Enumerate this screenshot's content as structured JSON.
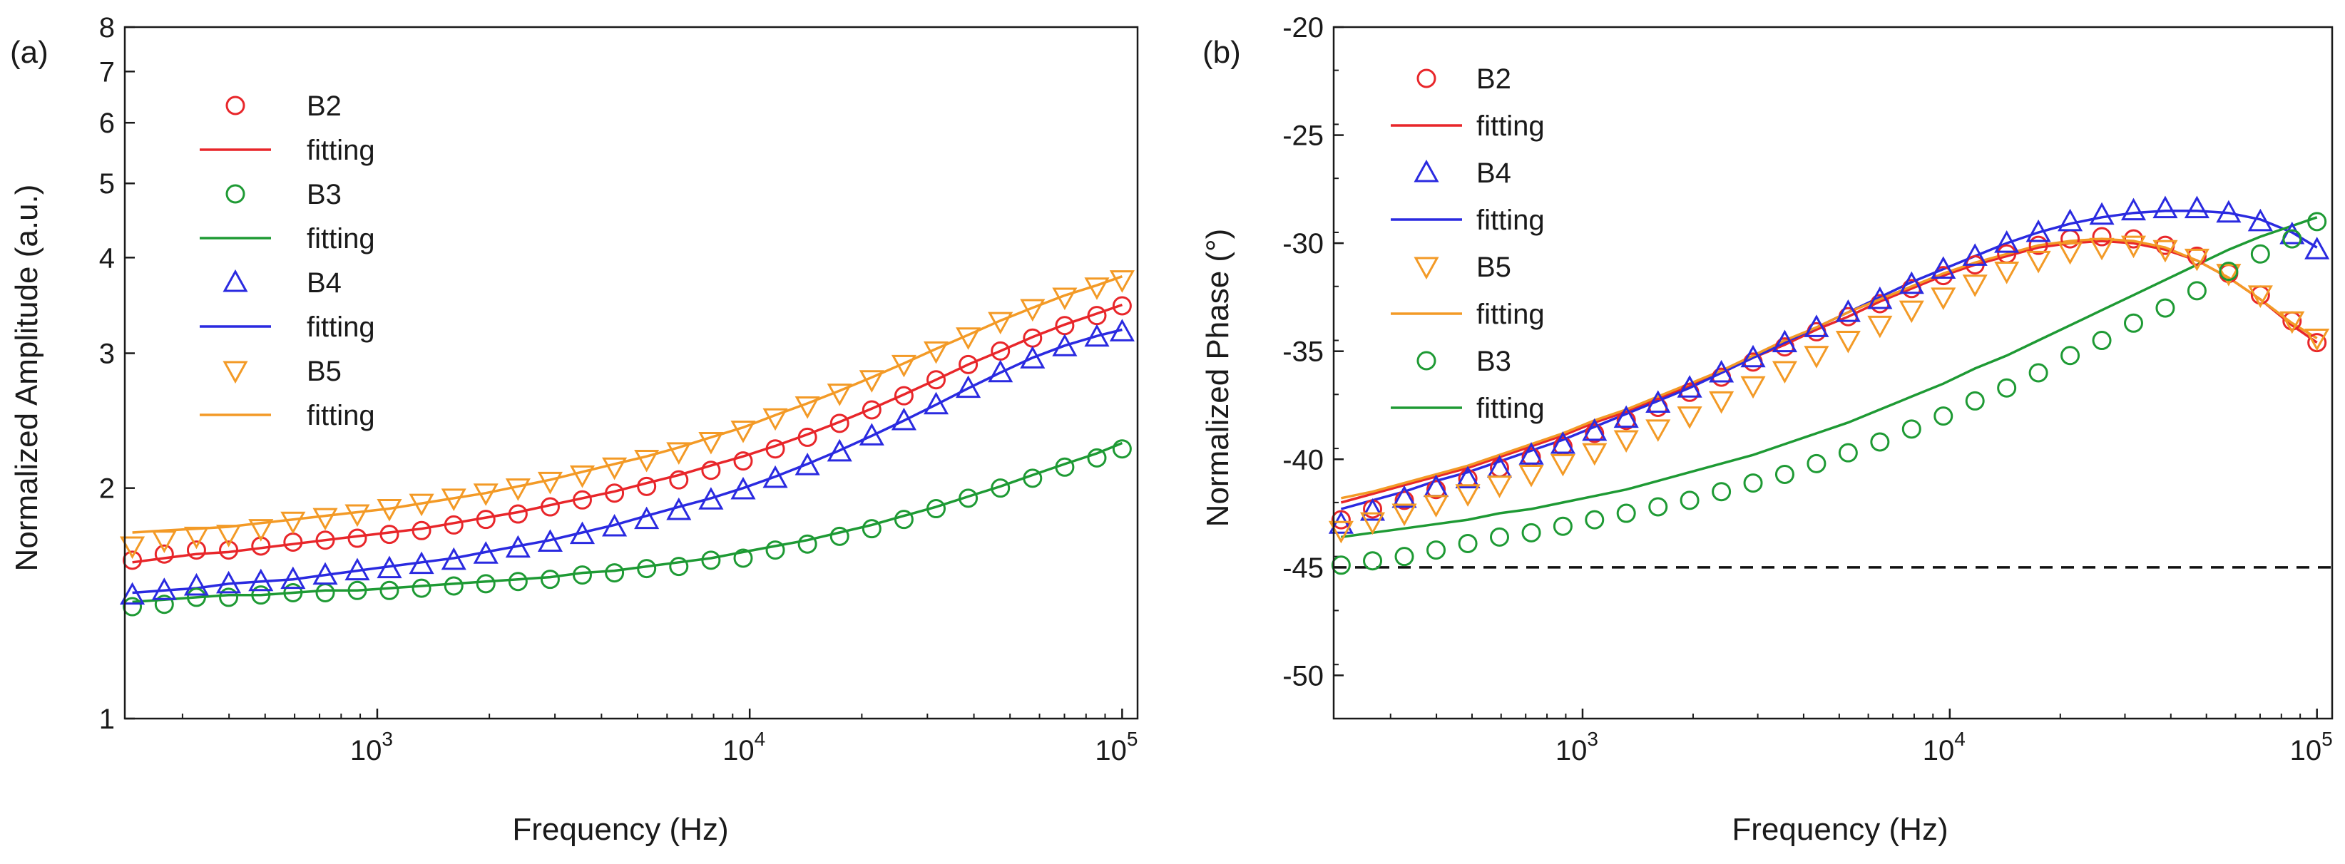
{
  "chart_data": [
    {
      "type": "scatter",
      "panel_label": "(a)",
      "xlabel": "Frequency (Hz)",
      "ylabel": "Normalized Amplitude (a.u.)",
      "xscale": "log",
      "yscale": "log",
      "xlim": [
        210,
        110000
      ],
      "ylim": [
        1,
        8
      ],
      "x_ticks": [
        {
          "value": 1000,
          "base": "10",
          "exp": "3"
        },
        {
          "value": 10000,
          "base": "10",
          "exp": "4"
        },
        {
          "value": 100000,
          "base": "10",
          "exp": "5"
        }
      ],
      "y_ticks": [
        {
          "value": 1,
          "label": "1"
        },
        {
          "value": 2,
          "label": "2"
        },
        {
          "value": 3,
          "label": "3"
        },
        {
          "value": 4,
          "label": "4"
        },
        {
          "value": 5,
          "label": "5"
        },
        {
          "value": 6,
          "label": "6"
        },
        {
          "value": 7,
          "label": "7"
        },
        {
          "value": 8,
          "label": "8"
        }
      ],
      "legend_position": "top-left",
      "legend": [
        {
          "label": "B2",
          "kind": "marker",
          "marker": "circle",
          "color": "#e8262a"
        },
        {
          "label": "fitting",
          "kind": "line",
          "color": "#e8262a"
        },
        {
          "label": "B3",
          "kind": "marker",
          "marker": "circle",
          "color": "#1e9a34"
        },
        {
          "label": "fitting",
          "kind": "line",
          "color": "#1e9a34"
        },
        {
          "label": "B4",
          "kind": "marker",
          "marker": "triangle-up",
          "color": "#2a2ae0"
        },
        {
          "label": "fitting",
          "kind": "line",
          "color": "#2a2ae0"
        },
        {
          "label": "B5",
          "kind": "marker",
          "marker": "triangle-down",
          "color": "#f39a26"
        },
        {
          "label": "fitting",
          "kind": "line",
          "color": "#f39a26"
        }
      ],
      "x": [
        220,
        268,
        327,
        399,
        487,
        594,
        725,
        884,
        1078,
        1315,
        1605,
        1957,
        2388,
        2913,
        3553,
        4335,
        5288,
        6452,
        7871,
        9603,
        11714,
        14291,
        17434,
        21269,
        25948,
        31656,
        38619,
        47115,
        57479,
        70123,
        85549,
        100000
      ],
      "series": [
        {
          "name": "B2",
          "marker": "circle",
          "color": "#e8262a",
          "values": [
            1.61,
            1.64,
            1.66,
            1.66,
            1.68,
            1.7,
            1.71,
            1.72,
            1.74,
            1.76,
            1.79,
            1.82,
            1.85,
            1.89,
            1.93,
            1.97,
            2.01,
            2.05,
            2.11,
            2.17,
            2.25,
            2.33,
            2.43,
            2.53,
            2.64,
            2.77,
            2.9,
            3.02,
            3.14,
            3.26,
            3.36,
            3.46
          ],
          "fit": [
            1.6,
            1.62,
            1.64,
            1.65,
            1.67,
            1.69,
            1.71,
            1.73,
            1.75,
            1.77,
            1.8,
            1.83,
            1.86,
            1.9,
            1.94,
            1.98,
            2.03,
            2.08,
            2.14,
            2.2,
            2.27,
            2.35,
            2.44,
            2.54,
            2.65,
            2.77,
            2.9,
            3.02,
            3.15,
            3.27,
            3.38,
            3.47
          ]
        },
        {
          "name": "B3",
          "marker": "circle",
          "color": "#1e9a34",
          "values": [
            1.4,
            1.41,
            1.44,
            1.44,
            1.45,
            1.46,
            1.46,
            1.47,
            1.47,
            1.48,
            1.49,
            1.5,
            1.51,
            1.52,
            1.54,
            1.55,
            1.57,
            1.58,
            1.61,
            1.62,
            1.66,
            1.69,
            1.73,
            1.77,
            1.82,
            1.88,
            1.94,
            2.0,
            2.06,
            2.13,
            2.19,
            2.25
          ],
          "fit": [
            1.42,
            1.43,
            1.44,
            1.45,
            1.45,
            1.46,
            1.47,
            1.47,
            1.48,
            1.49,
            1.5,
            1.51,
            1.52,
            1.53,
            1.55,
            1.56,
            1.58,
            1.6,
            1.62,
            1.65,
            1.68,
            1.71,
            1.75,
            1.79,
            1.84,
            1.89,
            1.95,
            2.01,
            2.08,
            2.15,
            2.22,
            2.29
          ]
        },
        {
          "name": "B4",
          "marker": "triangle-up",
          "color": "#2a2ae0",
          "values": [
            1.45,
            1.47,
            1.49,
            1.5,
            1.51,
            1.52,
            1.54,
            1.56,
            1.57,
            1.59,
            1.61,
            1.64,
            1.67,
            1.7,
            1.74,
            1.78,
            1.82,
            1.87,
            1.93,
            1.99,
            2.06,
            2.14,
            2.23,
            2.34,
            2.45,
            2.57,
            2.7,
            2.83,
            2.95,
            3.06,
            3.15,
            3.2
          ],
          "fit": [
            1.46,
            1.47,
            1.48,
            1.5,
            1.51,
            1.52,
            1.54,
            1.56,
            1.58,
            1.6,
            1.62,
            1.65,
            1.68,
            1.71,
            1.75,
            1.79,
            1.84,
            1.89,
            1.94,
            2.0,
            2.07,
            2.15,
            2.24,
            2.34,
            2.45,
            2.57,
            2.7,
            2.83,
            2.96,
            3.07,
            3.16,
            3.22
          ]
        },
        {
          "name": "B5",
          "marker": "triangle-down",
          "color": "#f39a26",
          "values": [
            1.68,
            1.71,
            1.73,
            1.74,
            1.77,
            1.81,
            1.83,
            1.85,
            1.88,
            1.91,
            1.94,
            1.97,
            2.0,
            2.04,
            2.08,
            2.13,
            2.18,
            2.23,
            2.3,
            2.38,
            2.47,
            2.56,
            2.66,
            2.77,
            2.9,
            3.02,
            3.15,
            3.3,
            3.43,
            3.55,
            3.66,
            3.74
          ],
          "fit": [
            1.75,
            1.76,
            1.77,
            1.78,
            1.8,
            1.82,
            1.84,
            1.86,
            1.88,
            1.91,
            1.94,
            1.97,
            2.01,
            2.05,
            2.1,
            2.15,
            2.2,
            2.26,
            2.33,
            2.4,
            2.49,
            2.58,
            2.68,
            2.79,
            2.91,
            3.04,
            3.17,
            3.31,
            3.44,
            3.57,
            3.68,
            3.78
          ]
        }
      ]
    },
    {
      "type": "scatter",
      "panel_label": "(b)",
      "xlabel": "Frequency (Hz)",
      "ylabel": "Normalized Phase (°)",
      "xscale": "log",
      "yscale": "linear",
      "xlim": [
        210,
        110000
      ],
      "ylim": [
        -52,
        -20
      ],
      "x_ticks": [
        {
          "value": 1000,
          "base": "10",
          "exp": "3"
        },
        {
          "value": 10000,
          "base": "10",
          "exp": "4"
        },
        {
          "value": 100000,
          "base": "10",
          "exp": "5"
        }
      ],
      "y_ticks": [
        {
          "value": -20,
          "label": "-20"
        },
        {
          "value": -25,
          "label": "-25"
        },
        {
          "value": -30,
          "label": "-30"
        },
        {
          "value": -35,
          "label": "-35"
        },
        {
          "value": -40,
          "label": "-40"
        },
        {
          "value": -45,
          "label": "-45"
        },
        {
          "value": -50,
          "label": "-50"
        }
      ],
      "reference_line": {
        "y": -45,
        "style": "dashed",
        "color": "#111111"
      },
      "legend_position": "top-left",
      "legend": [
        {
          "label": "B2",
          "kind": "marker",
          "marker": "circle",
          "color": "#e8262a"
        },
        {
          "label": "fitting",
          "kind": "line",
          "color": "#e8262a"
        },
        {
          "label": "B4",
          "kind": "marker",
          "marker": "triangle-up",
          "color": "#2a2ae0"
        },
        {
          "label": "fitting",
          "kind": "line",
          "color": "#2a2ae0"
        },
        {
          "label": "B5",
          "kind": "marker",
          "marker": "triangle-down",
          "color": "#f39a26"
        },
        {
          "label": "fitting",
          "kind": "line",
          "color": "#f39a26"
        },
        {
          "label": "B3",
          "kind": "marker",
          "marker": "circle",
          "color": "#1e9a34"
        },
        {
          "label": "fitting",
          "kind": "line",
          "color": "#1e9a34"
        }
      ],
      "x": [
        220,
        268,
        327,
        399,
        487,
        594,
        725,
        884,
        1078,
        1315,
        1605,
        1957,
        2388,
        2913,
        3553,
        4335,
        5288,
        6452,
        7871,
        9603,
        11714,
        14291,
        17434,
        21269,
        25948,
        31656,
        38619,
        47115,
        57479,
        70123,
        85549,
        100000
      ],
      "series": [
        {
          "name": "B2",
          "marker": "circle",
          "color": "#e8262a",
          "values": [
            -42.8,
            -42.3,
            -41.9,
            -41.4,
            -40.9,
            -40.4,
            -39.9,
            -39.4,
            -38.8,
            -38.2,
            -37.6,
            -36.9,
            -36.2,
            -35.5,
            -34.8,
            -34.1,
            -33.4,
            -32.8,
            -32.1,
            -31.5,
            -31.0,
            -30.5,
            -30.1,
            -29.8,
            -29.7,
            -29.8,
            -30.1,
            -30.6,
            -31.4,
            -32.4,
            -33.6,
            -34.6
          ],
          "fit": [
            -42.0,
            -41.6,
            -41.2,
            -40.8,
            -40.4,
            -39.9,
            -39.4,
            -38.9,
            -38.3,
            -37.8,
            -37.2,
            -36.6,
            -36.0,
            -35.3,
            -34.7,
            -34.0,
            -33.4,
            -32.7,
            -32.1,
            -31.5,
            -31.0,
            -30.6,
            -30.2,
            -30.0,
            -29.9,
            -30.0,
            -30.3,
            -30.8,
            -31.6,
            -32.6,
            -33.8,
            -34.6
          ]
        },
        {
          "name": "B4",
          "marker": "triangle-up",
          "color": "#2a2ae0",
          "values": [
            -43.0,
            -42.4,
            -41.8,
            -41.3,
            -40.9,
            -40.4,
            -39.8,
            -39.3,
            -38.7,
            -38.1,
            -37.4,
            -36.7,
            -36.0,
            -35.3,
            -34.6,
            -33.9,
            -33.2,
            -32.6,
            -31.9,
            -31.2,
            -30.6,
            -30.0,
            -29.5,
            -29.0,
            -28.7,
            -28.5,
            -28.4,
            -28.4,
            -28.6,
            -29.0,
            -29.6,
            -30.3
          ],
          "fit": [
            -42.3,
            -41.9,
            -41.5,
            -41.0,
            -40.6,
            -40.1,
            -39.6,
            -39.1,
            -38.5,
            -37.9,
            -37.3,
            -36.7,
            -36.0,
            -35.3,
            -34.6,
            -33.9,
            -33.2,
            -32.5,
            -31.8,
            -31.2,
            -30.6,
            -30.0,
            -29.5,
            -29.1,
            -28.8,
            -28.6,
            -28.5,
            -28.5,
            -28.6,
            -28.9,
            -29.5,
            -30.2
          ]
        },
        {
          "name": "B5",
          "marker": "triangle-down",
          "color": "#f39a26",
          "values": [
            -43.3,
            -42.9,
            -42.5,
            -42.1,
            -41.6,
            -41.2,
            -40.7,
            -40.2,
            -39.7,
            -39.1,
            -38.6,
            -38.0,
            -37.3,
            -36.6,
            -35.9,
            -35.2,
            -34.5,
            -33.8,
            -33.1,
            -32.5,
            -31.9,
            -31.3,
            -30.8,
            -30.4,
            -30.2,
            -30.1,
            -30.3,
            -30.7,
            -31.4,
            -32.4,
            -33.6,
            -34.4
          ],
          "fit": [
            -41.8,
            -41.5,
            -41.1,
            -40.7,
            -40.3,
            -39.8,
            -39.3,
            -38.8,
            -38.2,
            -37.7,
            -37.1,
            -36.5,
            -35.9,
            -35.2,
            -34.5,
            -33.9,
            -33.2,
            -32.6,
            -32.0,
            -31.4,
            -30.9,
            -30.5,
            -30.1,
            -29.9,
            -29.8,
            -29.9,
            -30.2,
            -30.8,
            -31.6,
            -32.6,
            -33.7,
            -34.4
          ]
        },
        {
          "name": "B3",
          "marker": "circle",
          "color": "#1e9a34",
          "values": [
            -44.9,
            -44.7,
            -44.5,
            -44.2,
            -43.9,
            -43.6,
            -43.4,
            -43.1,
            -42.8,
            -42.5,
            -42.2,
            -41.9,
            -41.5,
            -41.1,
            -40.7,
            -40.2,
            -39.7,
            -39.2,
            -38.6,
            -38.0,
            -37.3,
            -36.7,
            -36.0,
            -35.2,
            -34.5,
            -33.7,
            -33.0,
            -32.2,
            -31.3,
            -30.5,
            -29.8,
            -29.0
          ],
          "fit": [
            -43.6,
            -43.4,
            -43.2,
            -43.0,
            -42.8,
            -42.5,
            -42.3,
            -42.0,
            -41.7,
            -41.4,
            -41.0,
            -40.6,
            -40.2,
            -39.8,
            -39.3,
            -38.8,
            -38.3,
            -37.7,
            -37.1,
            -36.5,
            -35.8,
            -35.2,
            -34.5,
            -33.8,
            -33.1,
            -32.4,
            -31.7,
            -31.0,
            -30.3,
            -29.7,
            -29.2,
            -28.8
          ]
        }
      ]
    }
  ]
}
